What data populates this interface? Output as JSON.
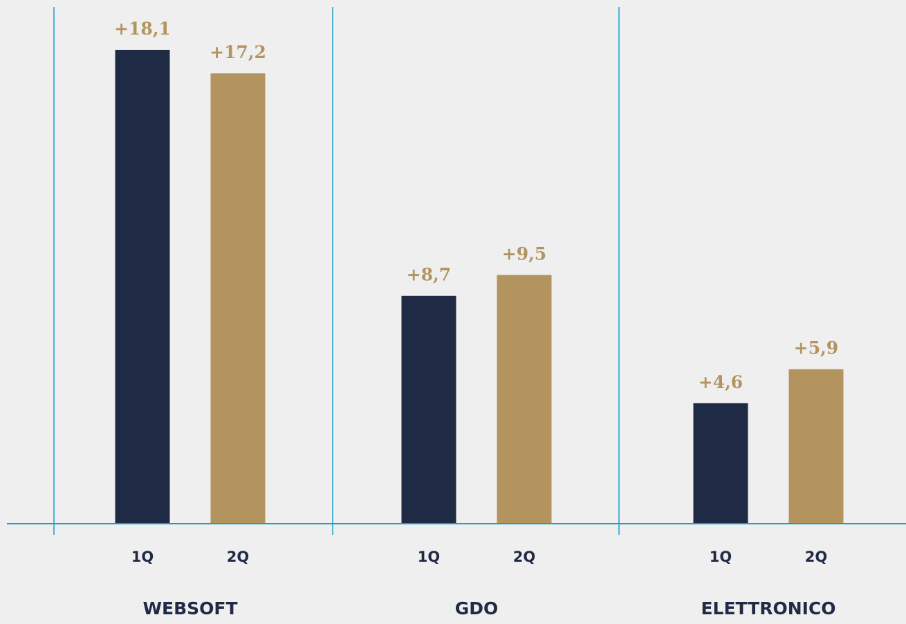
{
  "chart_data": {
    "type": "bar",
    "categories": [
      "WEBSOFT",
      "GDO",
      "ELETTRONICO"
    ],
    "sub_categories": [
      "1Q",
      "2Q"
    ],
    "series": [
      {
        "values": [
          18.1,
          8.7,
          4.6
        ],
        "labels": [
          "+18,1",
          "+8,7",
          "+4,6"
        ],
        "color": "#1f2a44"
      },
      {
        "values": [
          17.2,
          9.5,
          5.9
        ],
        "labels": [
          "+17,2",
          "+9,5",
          "+5,9"
        ],
        "color": "#b3945e"
      }
    ],
    "ylim": [
      0,
      20
    ],
    "grid": false,
    "label_color": "#b3945e",
    "axis_color": "#1aa0c8"
  }
}
